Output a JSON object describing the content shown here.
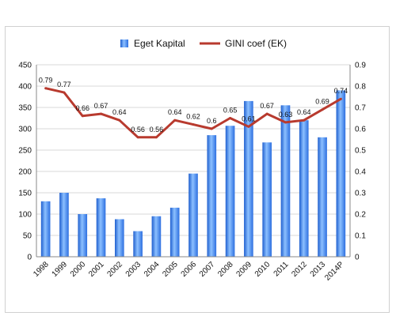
{
  "chart_data": {
    "type": "bar+line",
    "categories": [
      "1998",
      "1999",
      "2000",
      "2001",
      "2002",
      "2003",
      "2004",
      "2005",
      "2006",
      "2007",
      "2008",
      "2009",
      "2010",
      "2011",
      "2012",
      "2013",
      "2014P"
    ],
    "series": [
      {
        "name": "Eget Kapital",
        "type": "bar",
        "axis": "left",
        "values": [
          130,
          150,
          100,
          137,
          88,
          60,
          95,
          115,
          195,
          285,
          307,
          365,
          268,
          355,
          320,
          280,
          390
        ],
        "color": "#3a7ee8"
      },
      {
        "name": "GINI coef (EK)",
        "type": "line",
        "axis": "right",
        "values": [
          0.79,
          0.77,
          0.66,
          0.67,
          0.64,
          0.56,
          0.56,
          0.64,
          0.62,
          0.6,
          0.65,
          0.61,
          0.67,
          0.63,
          0.64,
          0.69,
          0.74
        ],
        "labels": [
          "0.79",
          "0.77",
          "0.66",
          "0.67",
          "0.64",
          "0.56",
          "0.56",
          "0.64",
          "0.62",
          "0.6",
          "0.65",
          "0.61",
          "0.67",
          "0.63",
          "0.64",
          "0.69",
          "0.74"
        ],
        "color": "#b83a2e"
      }
    ],
    "y_left": {
      "min": 0,
      "max": 450,
      "step": 50,
      "ticks": [
        "0",
        "50",
        "100",
        "150",
        "200",
        "250",
        "300",
        "350",
        "400",
        "450"
      ]
    },
    "y_right": {
      "min": 0,
      "max": 0.9,
      "step": 0.1,
      "ticks": [
        "0",
        "0.1",
        "0.2",
        "0.3",
        "0.4",
        "0.5",
        "0.6",
        "0.7",
        "0.8",
        "0.9"
      ]
    },
    "grid": true,
    "legend": "top",
    "title": "",
    "xlabel": "",
    "ylabel": ""
  }
}
